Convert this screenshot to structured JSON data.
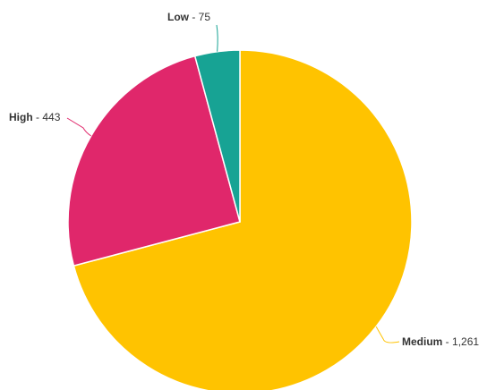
{
  "chart_data": {
    "type": "pie",
    "slices": [
      {
        "label": "Medium",
        "value": 1261,
        "display_value": "1,261",
        "color": "#ffc300"
      },
      {
        "label": "High",
        "value": 443,
        "display_value": "443",
        "color": "#e0276b"
      },
      {
        "label": "Low",
        "value": 75,
        "display_value": "75",
        "color": "#17a394"
      }
    ],
    "start": "12 o'clock",
    "direction": "clockwise",
    "legend": "none",
    "data_labels": "outside with leader lines",
    "label_separator": " - "
  }
}
